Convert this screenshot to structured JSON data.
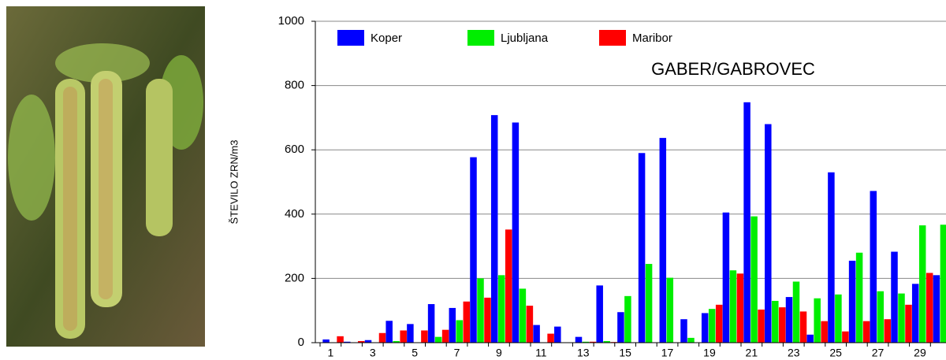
{
  "chart_data": {
    "type": "bar",
    "title": "GABER/GABROVEC",
    "y_label": "ŠTEVILO ZRN/m3",
    "categories": [
      "1",
      null,
      "3",
      null,
      "5",
      null,
      "7",
      null,
      "9",
      null,
      "11",
      null,
      "13",
      null,
      "15",
      null,
      "17",
      null,
      "19",
      null,
      "21",
      null,
      "23",
      null,
      "25",
      null,
      "27",
      null,
      "29",
      null
    ],
    "series": [
      {
        "name": "Koper",
        "color": "#0000ff",
        "values": [
          10,
          3,
          8,
          68,
          58,
          120,
          108,
          577,
          708,
          685,
          55,
          50,
          18,
          178,
          95,
          590,
          637,
          73,
          92,
          405,
          748,
          680,
          142,
          25,
          530,
          255,
          472,
          283,
          183,
          210
        ]
      },
      {
        "name": "Ljubljana",
        "color": "#00ee00",
        "values": [
          0,
          0,
          0,
          5,
          0,
          18,
          70,
          200,
          210,
          168,
          0,
          0,
          3,
          5,
          145,
          245,
          202,
          15,
          105,
          225,
          393,
          130,
          190,
          138,
          150,
          280,
          160,
          153,
          365,
          367
        ]
      },
      {
        "name": "Maribor",
        "color": "#ff0000",
        "values": [
          20,
          5,
          30,
          38,
          38,
          40,
          128,
          140,
          352,
          115,
          28,
          0,
          3,
          2,
          0,
          0,
          0,
          0,
          118,
          215,
          103,
          110,
          97,
          67,
          35,
          67,
          73,
          118,
          217,
          null
        ]
      }
    ],
    "ylim": [
      0,
      1000
    ],
    "yticks": [
      0,
      200,
      400,
      600,
      800,
      1000
    ],
    "grid": true
  }
}
